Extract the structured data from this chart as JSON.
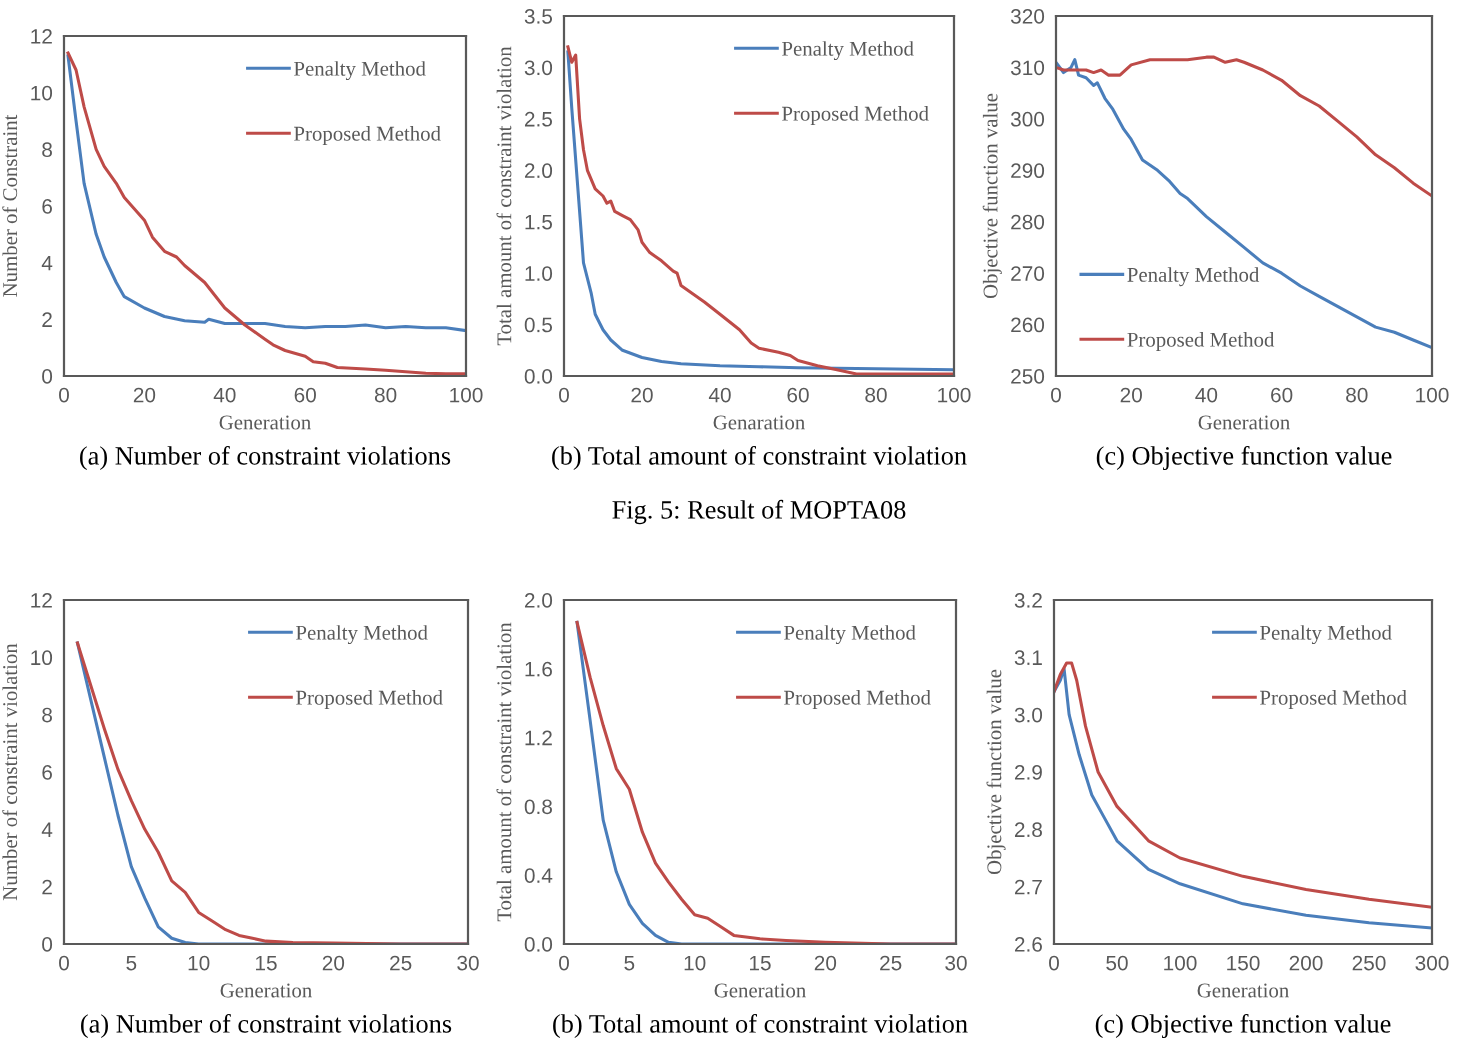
{
  "chart_data": [
    {
      "type": "line",
      "xlabel": "Generation",
      "ylabel": "Number of Constraint",
      "xlim": [
        0,
        100
      ],
      "ylim": [
        0,
        12
      ],
      "xticks": [
        0,
        20,
        40,
        60,
        80,
        100
      ],
      "yticks": [
        0,
        2,
        4,
        6,
        8,
        10,
        12
      ],
      "legend": "top right",
      "annotations": [
        "(a) Number of constraint violations"
      ],
      "series": [
        {
          "name": "Penalty Method",
          "color": "#4a7ebb",
          "x": [
            1,
            3,
            5,
            8,
            10,
            13,
            15,
            20,
            25,
            30,
            35,
            36,
            40,
            45,
            50,
            55,
            60,
            65,
            70,
            75,
            80,
            85,
            90,
            95,
            100
          ],
          "values": [
            11.3,
            9,
            6.8,
            5,
            4.2,
            3.3,
            2.8,
            2.4,
            2.1,
            1.95,
            1.9,
            2.0,
            1.85,
            1.85,
            1.85,
            1.75,
            1.7,
            1.75,
            1.75,
            1.8,
            1.7,
            1.75,
            1.7,
            1.7,
            1.6
          ]
        },
        {
          "name": "Proposed Method",
          "color": "#be4b48",
          "x": [
            1,
            3,
            5,
            8,
            10,
            13,
            15,
            20,
            22,
            25,
            28,
            30,
            35,
            40,
            45,
            50,
            52,
            55,
            60,
            62,
            65,
            68,
            75,
            80,
            85,
            90,
            95,
            100
          ],
          "values": [
            11.4,
            10.8,
            9.5,
            8,
            7.4,
            6.8,
            6.3,
            5.5,
            4.9,
            4.4,
            4.2,
            3.9,
            3.3,
            2.4,
            1.8,
            1.3,
            1.1,
            0.9,
            0.7,
            0.5,
            0.45,
            0.3,
            0.25,
            0.2,
            0.15,
            0.1,
            0.08,
            0.08
          ]
        }
      ]
    },
    {
      "type": "line",
      "xlabel": "Genaration",
      "ylabel": "Total amount of constraint violation",
      "xlim": [
        0,
        100
      ],
      "ylim": [
        0,
        3.5
      ],
      "xticks": [
        0,
        20,
        40,
        60,
        80,
        100
      ],
      "yticks": [
        {
          "value": 0,
          "label": "0.0"
        },
        0.5,
        {
          "value": 1,
          "label": "1.0"
        },
        1.5,
        {
          "value": 2,
          "label": "2.0"
        },
        2.5,
        {
          "value": 3,
          "label": "3.0"
        },
        3.5
      ],
      "legend": "top right",
      "annotations": [
        "(b) Total amount of constraint violation",
        "Fig. 5: Result of MOPTA08"
      ],
      "series": [
        {
          "name": "Penalty Method",
          "color": "#4a7ebb",
          "x": [
            1,
            2,
            4,
            5,
            7,
            8,
            10,
            12,
            15,
            20,
            25,
            30,
            40,
            50,
            60,
            80,
            100
          ],
          "values": [
            3.15,
            2.6,
            1.6,
            1.1,
            0.8,
            0.6,
            0.45,
            0.35,
            0.25,
            0.18,
            0.14,
            0.12,
            0.1,
            0.09,
            0.08,
            0.07,
            0.06
          ]
        },
        {
          "name": "Proposed Method",
          "color": "#be4b48",
          "x": [
            1,
            2,
            3,
            4,
            5,
            6,
            8,
            10,
            11,
            12,
            13,
            15,
            17,
            19,
            20,
            22,
            25,
            28,
            29,
            30,
            33,
            36,
            40,
            45,
            48,
            50,
            55,
            58,
            60,
            65,
            70,
            75,
            80,
            100
          ],
          "values": [
            3.2,
            3.05,
            3.12,
            2.5,
            2.2,
            2.0,
            1.82,
            1.75,
            1.68,
            1.7,
            1.6,
            1.56,
            1.52,
            1.42,
            1.3,
            1.2,
            1.12,
            1.02,
            1.0,
            0.88,
            0.8,
            0.72,
            0.6,
            0.45,
            0.32,
            0.27,
            0.23,
            0.2,
            0.15,
            0.1,
            0.06,
            0.02,
            0.02,
            0.02
          ]
        }
      ]
    },
    {
      "type": "line",
      "xlabel": "Generation",
      "ylabel": "Objective function value",
      "xlim": [
        0,
        100
      ],
      "ylim": [
        250,
        320
      ],
      "xticks": [
        0,
        20,
        40,
        60,
        80,
        100
      ],
      "yticks": [
        250,
        260,
        270,
        280,
        290,
        300,
        310,
        320
      ],
      "legend": "bottom left",
      "annotations": [
        "(c) Objective function value"
      ],
      "series": [
        {
          "name": "Penalty Method",
          "color": "#4a7ebb",
          "x": [
            0,
            1,
            2,
            4,
            5,
            6,
            8,
            10,
            11,
            13,
            15,
            18,
            20,
            23,
            27,
            30,
            33,
            35,
            40,
            45,
            50,
            55,
            60,
            65,
            70,
            75,
            80,
            85,
            90,
            95,
            100
          ],
          "values": [
            311,
            310,
            309,
            310,
            311.5,
            308.5,
            308,
            306.5,
            307,
            304,
            302,
            298,
            296,
            292,
            290,
            288,
            285.5,
            284.5,
            281,
            278,
            275,
            272,
            270,
            267.5,
            265.5,
            263.5,
            261.5,
            259.5,
            258.5,
            257,
            255.5
          ]
        },
        {
          "name": "Proposed Method",
          "color": "#be4b48",
          "x": [
            0,
            2,
            5,
            8,
            10,
            12,
            14,
            17,
            20,
            25,
            30,
            35,
            40,
            42,
            45,
            48,
            50,
            55,
            60,
            65,
            70,
            75,
            80,
            85,
            90,
            95,
            100
          ],
          "values": [
            310,
            309.5,
            309.5,
            309.5,
            309,
            309.5,
            308.5,
            308.5,
            310.5,
            311.5,
            311.5,
            311.5,
            312,
            312,
            311,
            311.5,
            311,
            309.5,
            307.5,
            304.5,
            302.5,
            299.5,
            296.5,
            293,
            290.5,
            287.5,
            285
          ]
        }
      ]
    },
    {
      "type": "line",
      "xlabel": "Generation",
      "ylabel": "Number of constraint violation",
      "xlim": [
        0,
        30
      ],
      "ylim": [
        0,
        12
      ],
      "xticks": [
        0,
        5,
        10,
        15,
        20,
        25,
        30
      ],
      "yticks": [
        0,
        2,
        4,
        6,
        8,
        10,
        12
      ],
      "legend": "top right",
      "annotations": [
        "(a) Number of constraint violations"
      ],
      "series": [
        {
          "name": "Penalty Method",
          "color": "#4a7ebb",
          "x": [
            1,
            2,
            3,
            4,
            5,
            6,
            7,
            8,
            9,
            10,
            15,
            30
          ],
          "values": [
            10.5,
            8.5,
            6.5,
            4.5,
            2.7,
            1.6,
            0.6,
            0.2,
            0.05,
            0,
            0,
            0
          ]
        },
        {
          "name": "Proposed Method",
          "color": "#be4b48",
          "x": [
            1,
            2,
            3,
            4,
            5,
            6,
            7,
            8,
            9,
            10,
            11,
            12,
            13,
            14,
            15,
            17,
            20,
            25,
            30
          ],
          "values": [
            10.5,
            9,
            7.5,
            6.1,
            5,
            4,
            3.2,
            2.2,
            1.8,
            1.1,
            0.8,
            0.5,
            0.3,
            0.2,
            0.1,
            0.05,
            0.03,
            0,
            0
          ]
        }
      ]
    },
    {
      "type": "line",
      "xlabel": "Generation",
      "ylabel": "Total amount of constraint violation",
      "xlim": [
        0,
        30
      ],
      "ylim": [
        0,
        2
      ],
      "xticks": [
        0,
        5,
        10,
        15,
        20,
        25,
        30
      ],
      "yticks": [
        {
          "value": 0,
          "label": "0.0"
        },
        0.4,
        0.8,
        1.2,
        1.6,
        {
          "value": 2,
          "label": "2.0"
        }
      ],
      "legend": "top right",
      "annotations": [
        "(b) Total amount of constraint violation"
      ],
      "series": [
        {
          "name": "Penalty Method",
          "color": "#4a7ebb",
          "x": [
            1,
            2,
            3,
            4,
            5,
            6,
            7,
            8,
            9,
            30
          ],
          "values": [
            1.87,
            1.3,
            0.72,
            0.42,
            0.23,
            0.12,
            0.05,
            0.01,
            0,
            0
          ]
        },
        {
          "name": "Proposed Method",
          "color": "#be4b48",
          "x": [
            1,
            2,
            3,
            4,
            5,
            6,
            7,
            8,
            9,
            10,
            11,
            12,
            13,
            15,
            17,
            20,
            25,
            30
          ],
          "values": [
            1.87,
            1.55,
            1.27,
            1.02,
            0.9,
            0.65,
            0.47,
            0.36,
            0.26,
            0.17,
            0.15,
            0.1,
            0.05,
            0.03,
            0.02,
            0.01,
            0,
            0
          ]
        }
      ]
    },
    {
      "type": "line",
      "xlabel": "Generation",
      "ylabel": "Objective function value",
      "xlim": [
        0,
        300
      ],
      "ylim": [
        2.6,
        3.2
      ],
      "xticks": [
        0,
        50,
        100,
        150,
        200,
        250,
        300
      ],
      "yticks": [
        2.6,
        2.7,
        2.8,
        2.9,
        {
          "value": 3,
          "label": "3.0"
        },
        3.1,
        3.2
      ],
      "legend": "top right",
      "annotations": [
        "(c) Objective function value"
      ],
      "series": [
        {
          "name": "Penalty Method",
          "color": "#4a7ebb",
          "x": [
            0,
            5,
            8,
            12,
            20,
            30,
            40,
            50,
            75,
            100,
            150,
            200,
            250,
            300
          ],
          "values": [
            3.04,
            3.06,
            3.08,
            3.0,
            2.93,
            2.86,
            2.82,
            2.78,
            2.73,
            2.705,
            2.67,
            2.65,
            2.637,
            2.628
          ]
        },
        {
          "name": "Proposed Method",
          "color": "#be4b48",
          "x": [
            0,
            5,
            10,
            14,
            18,
            25,
            35,
            50,
            75,
            100,
            150,
            200,
            250,
            300
          ],
          "values": [
            3.04,
            3.07,
            3.09,
            3.09,
            3.06,
            2.98,
            2.9,
            2.84,
            2.78,
            2.75,
            2.718,
            2.695,
            2.678,
            2.664
          ]
        }
      ]
    }
  ]
}
